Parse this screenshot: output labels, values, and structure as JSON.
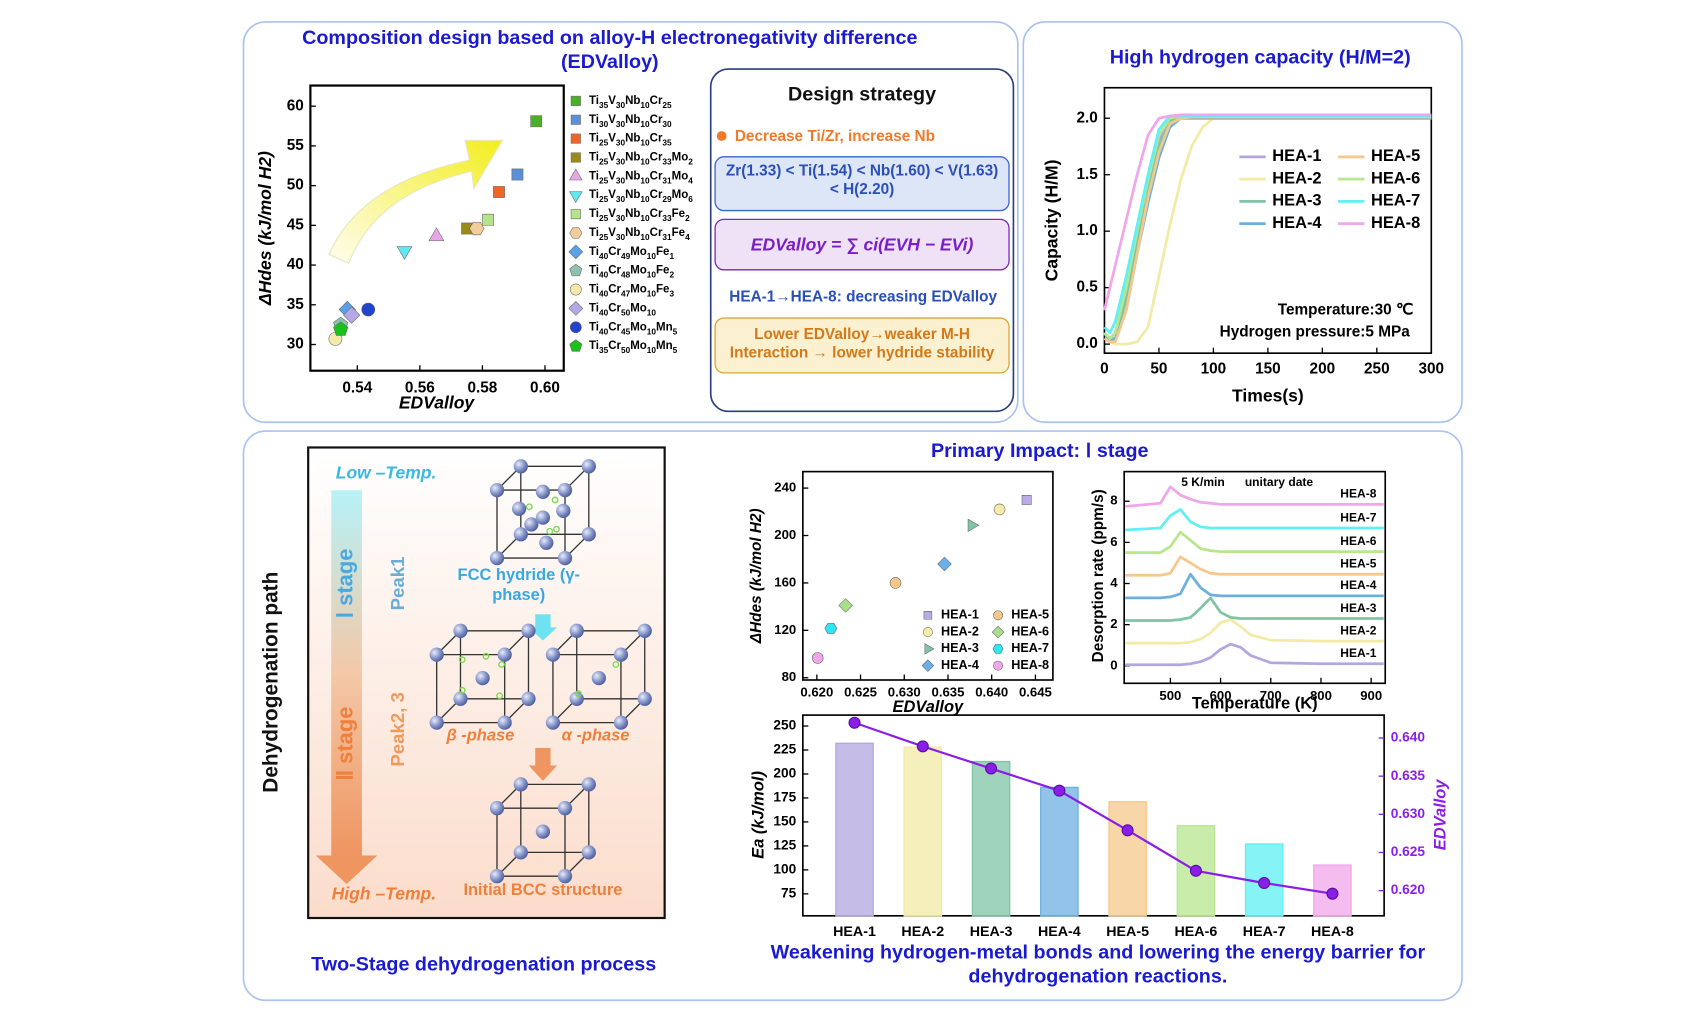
{
  "chart_data": [
    {
      "type": "scatter",
      "title": "Composition design based on alloy-H electronegativity difference (EDValloy)",
      "xlabel": "EDValloy",
      "ylabel": "ΔHdes (kJ/mol H2)",
      "xlim": [
        0.525,
        0.606
      ],
      "ylim": [
        26.7,
        62.6
      ],
      "xticks": [
        0.54,
        0.56,
        0.58,
        {
          "value": 0.6,
          "label": "0.60"
        }
      ],
      "yticks": [
        30,
        35,
        40,
        45,
        50,
        55,
        60
      ],
      "series": [
        {
          "name": "Ti35V30Nb10Cr25",
          "color": "#4caf2a",
          "marker": "square",
          "x": [
            0.5972
          ],
          "values": [
            58.1
          ]
        },
        {
          "name": "Ti30V30Nb10Cr30",
          "color": "#5b8fd6",
          "marker": "square",
          "x": [
            0.5912
          ],
          "values": [
            51.4
          ]
        },
        {
          "name": "Ti25V30Nb10Cr35",
          "color": "#f0642a",
          "marker": "square",
          "x": [
            0.5853
          ],
          "values": [
            49.2
          ]
        },
        {
          "name": "Ti25V30Nb10Cr33Mo2",
          "color": "#9a8a1a",
          "marker": "square",
          "x": [
            0.5751
          ],
          "values": [
            44.6
          ]
        },
        {
          "name": "Ti25V30Nb10Cr31Mo4",
          "color": "#e9a6e6",
          "marker": "triangle",
          "x": [
            0.5653
          ],
          "values": [
            43.6
          ]
        },
        {
          "name": "Ti25V30Nb10Cr29Mo6",
          "color": "#5fe8f2",
          "marker": "triangle-down",
          "x": [
            0.5551
          ],
          "values": [
            41.8
          ]
        },
        {
          "name": "Ti25V30Nb10Cr33Fe2",
          "color": "#b4e38a",
          "marker": "square",
          "x": [
            0.5818
          ],
          "values": [
            45.7
          ]
        },
        {
          "name": "Ti25V30Nb10Cr31Fe4",
          "color": "#f2cc9a",
          "marker": "hexagon",
          "x": [
            0.5782
          ],
          "values": [
            44.6
          ]
        },
        {
          "name": "Ti40Cr49Mo10Fe1",
          "color": "#5aa0e8",
          "marker": "diamond",
          "x": [
            0.5368
          ],
          "values": [
            34.4
          ]
        },
        {
          "name": "Ti40Cr48Mo10Fe2",
          "color": "#8fbfb0",
          "marker": "pentagon",
          "x": [
            0.5347
          ],
          "values": [
            32.5
          ]
        },
        {
          "name": "Ti40Cr47Mo10Fe3",
          "color": "#f3eaaa",
          "marker": "circle",
          "x": [
            0.533
          ],
          "values": [
            30.7
          ]
        },
        {
          "name": "Ti40Cr50Mo10",
          "color": "#b4a8e6",
          "marker": "diamond",
          "x": [
            0.5382
          ],
          "values": [
            33.7
          ]
        },
        {
          "name": "Ti40Cr45Mo10Mn5",
          "color": "#2244cc",
          "marker": "circle",
          "x": [
            0.5435
          ],
          "values": [
            34.4
          ]
        },
        {
          "name": "Ti35Cr50Mo10Mn5",
          "color": "#18c21a",
          "marker": "pentagon",
          "x": [
            0.5347
          ],
          "values": [
            31.9
          ]
        }
      ]
    },
    {
      "type": "line",
      "title": "High hydrogen capacity (H/M=2)",
      "xlabel": "Times(s)",
      "ylabel": "Capacity (H/M)",
      "xlim": [
        0,
        300
      ],
      "ylim": [
        -0.08,
        2.27
      ],
      "xticks": [
        0,
        50,
        100,
        150,
        200,
        250,
        300
      ],
      "yticks": [
        {
          "value": 0,
          "label": "0.0"
        },
        0.5,
        {
          "value": 1,
          "label": "1.0"
        },
        1.5,
        {
          "value": 2,
          "label": "2.0"
        }
      ],
      "annotations": [
        "Temperature:30 ℃",
        "Hydrogen pressure:5 MPa"
      ],
      "x": [
        0,
        5,
        10,
        20,
        30,
        40,
        50,
        60,
        70,
        80,
        90,
        100,
        300
      ],
      "series": [
        {
          "name": "HEA-1",
          "color": "#b3a6e0",
          "values": [
            0.1,
            0.05,
            0.1,
            0.5,
            0.95,
            1.4,
            1.8,
            1.98,
            2.0,
            2.0,
            2.0,
            2.0,
            2.0
          ]
        },
        {
          "name": "HEA-2",
          "color": "#f2eaa5",
          "values": [
            0.1,
            0.02,
            0,
            0,
            0.02,
            0.15,
            0.6,
            1.05,
            1.45,
            1.75,
            1.92,
            2.0,
            2.0
          ]
        },
        {
          "name": "HEA-3",
          "color": "#7fc4a4",
          "values": [
            0.1,
            0.05,
            0.05,
            0.4,
            0.9,
            1.35,
            1.75,
            1.97,
            2.0,
            2.01,
            2.01,
            2.01,
            2.01
          ]
        },
        {
          "name": "HEA-4",
          "color": "#6cb0e0",
          "values": [
            0.1,
            0.02,
            0.05,
            0.3,
            0.8,
            1.25,
            1.65,
            1.92,
            2.0,
            2.0,
            2.0,
            2.0,
            2.0
          ]
        },
        {
          "name": "HEA-5",
          "color": "#f5c88a",
          "values": [
            0.05,
            0.02,
            0.02,
            0.3,
            0.8,
            1.3,
            1.7,
            1.95,
            2.0,
            2.01,
            2.01,
            2.01,
            2.01
          ]
        },
        {
          "name": "HEA-6",
          "color": "#b8e68f",
          "values": [
            0.1,
            0.05,
            0.1,
            0.5,
            1.0,
            1.45,
            1.85,
            2.0,
            2.02,
            2.02,
            2.02,
            2.02,
            2.02
          ]
        },
        {
          "name": "HEA-7",
          "color": "#5ef0f4",
          "values": [
            0.15,
            0.1,
            0.2,
            0.6,
            1.05,
            1.5,
            1.9,
            2.02,
            2.02,
            2.02,
            2.02,
            2.02,
            2.02
          ]
        },
        {
          "name": "HEA-8",
          "color": "#f0a6ea",
          "values": [
            0.3,
            0.5,
            0.7,
            1.1,
            1.5,
            1.85,
            2.0,
            2.02,
            2.03,
            2.03,
            2.03,
            2.03,
            2.03
          ]
        }
      ]
    },
    {
      "type": "scatter",
      "xlabel": "EDValloy",
      "ylabel": "ΔHdes (kJ/mol H2)",
      "xlim": [
        0.6184,
        0.647
      ],
      "ylim": [
        78.1,
        253.9
      ],
      "xticks": [
        {
          "value": 0.62,
          "label": "0.620"
        },
        0.625,
        {
          "value": 0.63,
          "label": "0.630"
        },
        0.635,
        {
          "value": 0.64,
          "label": "0.640"
        },
        0.645
      ],
      "yticks": [
        80,
        120,
        160,
        200,
        240
      ],
      "series": [
        {
          "name": "HEA-1",
          "color": "#b8ace6",
          "marker": "square",
          "x": [
            0.644
          ],
          "values": [
            230
          ]
        },
        {
          "name": "HEA-2",
          "color": "#f5eca8",
          "marker": "circle",
          "x": [
            0.6409
          ],
          "values": [
            222
          ]
        },
        {
          "name": "HEA-3",
          "color": "#7fc4a4",
          "marker": "triangle-right",
          "x": [
            0.6377
          ],
          "values": [
            208.6
          ]
        },
        {
          "name": "HEA-4",
          "color": "#6cb0e8",
          "marker": "diamond",
          "x": [
            0.6346
          ],
          "values": [
            176
          ]
        },
        {
          "name": "HEA-5",
          "color": "#f5c88a",
          "marker": "circle",
          "x": [
            0.629
          ],
          "values": [
            160
          ]
        },
        {
          "name": "HEA-6",
          "color": "#a8e08a",
          "marker": "diamond",
          "x": [
            0.6233
          ],
          "values": [
            141
          ]
        },
        {
          "name": "HEA-7",
          "color": "#2ee6f0",
          "marker": "hexagon",
          "x": [
            0.6216
          ],
          "values": [
            121.6
          ]
        },
        {
          "name": "HEA-8",
          "color": "#f0a6ea",
          "marker": "circle",
          "x": [
            0.6201
          ],
          "values": [
            96.7
          ]
        }
      ]
    },
    {
      "type": "line",
      "xlabel": "Temperature (K)",
      "ylabel": "Desorption rate (ppm/s)",
      "xlim": [
        408,
        928
      ],
      "ylim": [
        -0.85,
        9.44
      ],
      "xticks": [
        500,
        600,
        700,
        800,
        900
      ],
      "yticks": [
        0,
        2,
        4,
        6,
        8
      ],
      "annotations": [
        "5 K/min",
        "unitary date"
      ],
      "x": [
        410,
        480,
        500,
        520,
        540,
        560,
        580,
        600,
        620,
        640,
        660,
        700,
        800,
        925
      ],
      "series": [
        {
          "name": "HEA-1",
          "color": "#b3a6e0",
          "values": [
            0.05,
            0.05,
            0.05,
            0.05,
            0.1,
            0.2,
            0.4,
            0.8,
            1.05,
            0.9,
            0.5,
            0.15,
            0.1,
            0.1
          ]
        },
        {
          "name": "HEA-2",
          "color": "#f2eaa5",
          "values": [
            1.1,
            1.1,
            1.1,
            1.1,
            1.15,
            1.3,
            1.6,
            2.1,
            2.25,
            1.9,
            1.5,
            1.25,
            1.2,
            1.2
          ]
        },
        {
          "name": "HEA-3",
          "color": "#7fc4a4",
          "values": [
            2.2,
            2.2,
            2.2,
            2.25,
            2.35,
            2.8,
            3.3,
            2.6,
            2.35,
            2.3,
            2.3,
            2.3,
            2.3,
            2.3
          ]
        },
        {
          "name": "HEA-4",
          "color": "#6cb0e0",
          "values": [
            3.3,
            3.3,
            3.35,
            3.5,
            4.45,
            3.8,
            3.45,
            3.4,
            3.4,
            3.4,
            3.4,
            3.4,
            3.4,
            3.4
          ]
        },
        {
          "name": "HEA-5",
          "color": "#f5c88a",
          "values": [
            4.4,
            4.4,
            4.5,
            5.3,
            5.0,
            4.7,
            4.5,
            4.45,
            4.45,
            4.45,
            4.45,
            4.45,
            4.45,
            4.45
          ]
        },
        {
          "name": "HEA-6",
          "color": "#b8e68f",
          "values": [
            5.5,
            5.5,
            5.8,
            6.5,
            6.1,
            5.7,
            5.6,
            5.55,
            5.55,
            5.55,
            5.55,
            5.55,
            5.55,
            5.55
          ]
        },
        {
          "name": "HEA-7",
          "color": "#5ef0f4",
          "values": [
            6.6,
            6.7,
            7.3,
            7.6,
            7.0,
            6.75,
            6.7,
            6.7,
            6.7,
            6.7,
            6.7,
            6.7,
            6.7,
            6.7
          ]
        },
        {
          "name": "HEA-8",
          "color": "#f0a6ea",
          "values": [
            7.75,
            7.9,
            8.7,
            8.3,
            8.1,
            7.95,
            7.9,
            7.85,
            7.85,
            7.85,
            7.85,
            7.85,
            7.85,
            7.85
          ]
        }
      ]
    },
    {
      "type": "bar",
      "title": "Weakening hydrogen-metal bonds and lowering the energy barrier for dehydrogenation reactions.",
      "ylabel": "Ea (kJ/mol)",
      "y2label": "EDValloy",
      "categories": [
        "HEA-1",
        "HEA-2",
        "HEA-3",
        "HEA-4",
        "HEA-5",
        "HEA-6",
        "HEA-7",
        "HEA-8"
      ],
      "ylim": [
        52.1,
        261.4
      ],
      "yticks": [
        75,
        100,
        125,
        150,
        175,
        200,
        225,
        250
      ],
      "y2lim": [
        0.6167,
        0.643
      ],
      "y2ticks": [
        {
          "value": 0.62,
          "label": "0.620"
        },
        0.625,
        {
          "value": 0.63,
          "label": "0.630"
        },
        0.635,
        {
          "value": 0.64,
          "label": "0.640"
        }
      ],
      "series": [
        {
          "colors": [
            "#b3a6e0",
            "#f2eaa5",
            "#7fc4a4",
            "#6cb0e0",
            "#f5c88a",
            "#b8e68f",
            "#5ef0f4",
            "#f0a6ea"
          ],
          "values": [
            232,
            228,
            213,
            186,
            171,
            146,
            127,
            105
          ]
        },
        {
          "axis": "y2",
          "color": "#8a1ee6",
          "values": [
            0.642,
            0.6389,
            0.636,
            0.6331,
            0.6279,
            0.6226,
            0.621,
            0.6196
          ]
        }
      ]
    }
  ],
  "design_strategy": {
    "title": "Design strategy",
    "bullet": "Decrease Ti/Zr, increase Nb",
    "electronegativity": "Zr(1.33) < Ti(1.54) < Nb(1.60) < V(1.63) < H(2.20)",
    "formula": "EDValloy = ∑ ci(EVH − EVi)",
    "trend": "HEA-1→HEA-8: decreasing EDValloy",
    "effect": "Lower EDValloy→weaker M-H Interaction → lower hydride stability"
  },
  "primary_impact": "Primary Impact: Ⅰ stage",
  "dehydrogenation": {
    "axis_title": "Dehydrogenation path",
    "low_temp": "Low –Temp.",
    "high_temp": "High –Temp.",
    "stage_1": "Ⅰ stage",
    "stage_2": "Ⅱ stage",
    "peak_1": "Peak1",
    "peak_2": "Peak2, 3",
    "fcc": "FCC hydride (γ-phase)",
    "beta": "β -phase",
    "alpha": "α -phase",
    "bcc": "Initial BCC structure",
    "caption": "Two-Stage dehydrogenation process"
  }
}
